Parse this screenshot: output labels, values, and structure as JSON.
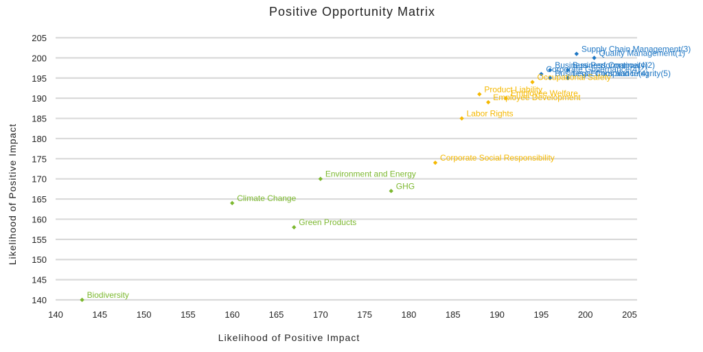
{
  "chart_data": {
    "type": "scatter",
    "title": "Positive Opportunity Matrix",
    "xlabel": "Likelihood of Positive Impact",
    "ylabel": "Likelihood of Positive Impact",
    "xlim": [
      140,
      205
    ],
    "ylim": [
      140,
      205
    ],
    "x_ticks": [
      140,
      145,
      150,
      155,
      160,
      165,
      170,
      175,
      180,
      185,
      190,
      195,
      200,
      205
    ],
    "y_ticks": [
      140,
      145,
      150,
      155,
      160,
      165,
      170,
      175,
      180,
      185,
      190,
      195,
      200,
      205
    ],
    "grid": "horizontal",
    "colors": {
      "blue": "#1f77c4",
      "orange": "#f5b800",
      "green": "#7cb82f"
    },
    "series": [
      {
        "color": "#1f77c4",
        "points": [
          {
            "label": "Supply Chain Management(3)",
            "x": 199,
            "y": 201
          },
          {
            "label": "Quality Management(1)",
            "x": 201,
            "y": 200
          },
          {
            "label": "Business Performance(4)",
            "x": 196,
            "y": 197
          },
          {
            "label": "Business Continuity(2)",
            "x": 198,
            "y": 197
          },
          {
            "label": "Corporate Governance(4)",
            "x": 195,
            "y": 196
          },
          {
            "label": "Legal Compliance(4)",
            "x": 198,
            "y": 195
          },
          {
            "label": "Business Ethics and Integrity(5)",
            "x": 196,
            "y": 195
          }
        ]
      },
      {
        "color": "#f5b800",
        "points": [
          {
            "label": "Occupational Safety",
            "x": 194,
            "y": 194
          },
          {
            "label": "Product Liability",
            "x": 188,
            "y": 191
          },
          {
            "label": "Employee Welfare",
            "x": 191,
            "y": 190
          },
          {
            "label": "Employee Development",
            "x": 189,
            "y": 189
          },
          {
            "label": "Labor Rights",
            "x": 186,
            "y": 185
          },
          {
            "label": "Corporate Social Responsibility",
            "x": 183,
            "y": 174
          }
        ]
      },
      {
        "color": "#7cb82f",
        "points": [
          {
            "label": "Environment and Energy",
            "x": 170,
            "y": 170
          },
          {
            "label": "GHG",
            "x": 178,
            "y": 167
          },
          {
            "label": "Climate Change",
            "x": 160,
            "y": 164
          },
          {
            "label": "Green Products",
            "x": 167,
            "y": 158
          },
          {
            "label": "Biodiversity",
            "x": 143,
            "y": 140
          }
        ]
      }
    ]
  }
}
